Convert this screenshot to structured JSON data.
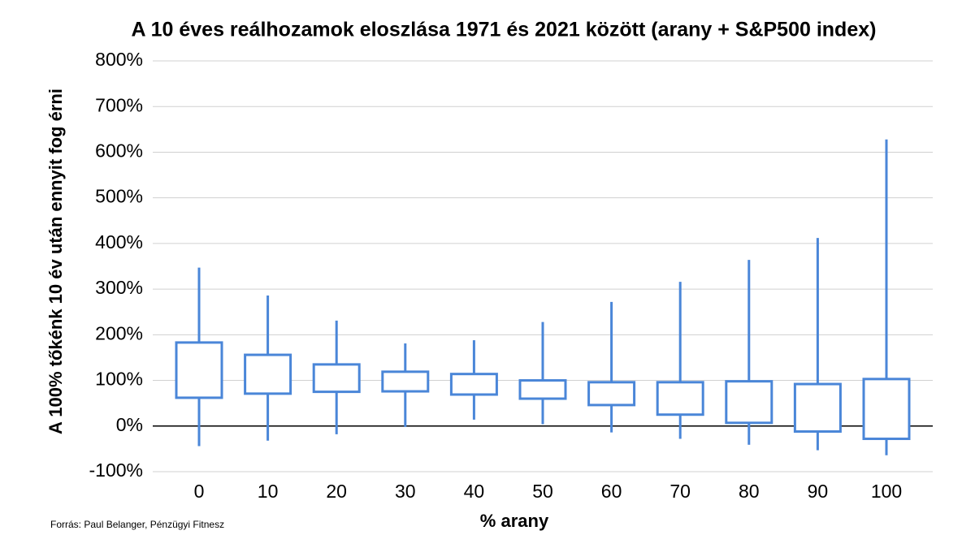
{
  "chart_data": {
    "type": "box",
    "title": "A 10 éves reálhozamok eloszlása 1971 és 2021 között (arany + S&P500 index)",
    "y_label": "A 100% tőkénk 10 év után ennyit fog érni",
    "x_label": "% arany",
    "source": "Forrás: Paul Belanger, Pénzügyi Fitnesz",
    "color": "#4a86d8",
    "grid": true,
    "categories": [
      "0",
      "10",
      "20",
      "30",
      "40",
      "50",
      "60",
      "70",
      "80",
      "90",
      "100"
    ],
    "boxes": [
      {
        "low": -44,
        "q1": 62,
        "q3": 183,
        "high": 347
      },
      {
        "low": -32,
        "q1": 71,
        "q3": 156,
        "high": 286
      },
      {
        "low": -18,
        "q1": 75,
        "q3": 135,
        "high": 231
      },
      {
        "low": -2,
        "q1": 76,
        "q3": 119,
        "high": 181
      },
      {
        "low": 14,
        "q1": 69,
        "q3": 114,
        "high": 188
      },
      {
        "low": 4,
        "q1": 60,
        "q3": 100,
        "high": 228
      },
      {
        "low": -14,
        "q1": 46,
        "q3": 96,
        "high": 272
      },
      {
        "low": -28,
        "q1": 25,
        "q3": 96,
        "high": 316
      },
      {
        "low": -41,
        "q1": 7,
        "q3": 98,
        "high": 364
      },
      {
        "low": -53,
        "q1": -12,
        "q3": 92,
        "high": 412
      },
      {
        "low": -64,
        "q1": -28,
        "q3": 103,
        "high": 628
      }
    ],
    "ylim": [
      -100,
      800
    ],
    "yticks": [
      {
        "value": -100,
        "label": "-100%"
      },
      {
        "value": 0,
        "label": "0%"
      },
      {
        "value": 100,
        "label": "100%"
      },
      {
        "value": 200,
        "label": "200%"
      },
      {
        "value": 300,
        "label": "300%"
      },
      {
        "value": 400,
        "label": "400%"
      },
      {
        "value": 500,
        "label": "500%"
      },
      {
        "value": 600,
        "label": "600%"
      },
      {
        "value": 700,
        "label": "700%"
      },
      {
        "value": 800,
        "label": "800%"
      }
    ]
  }
}
